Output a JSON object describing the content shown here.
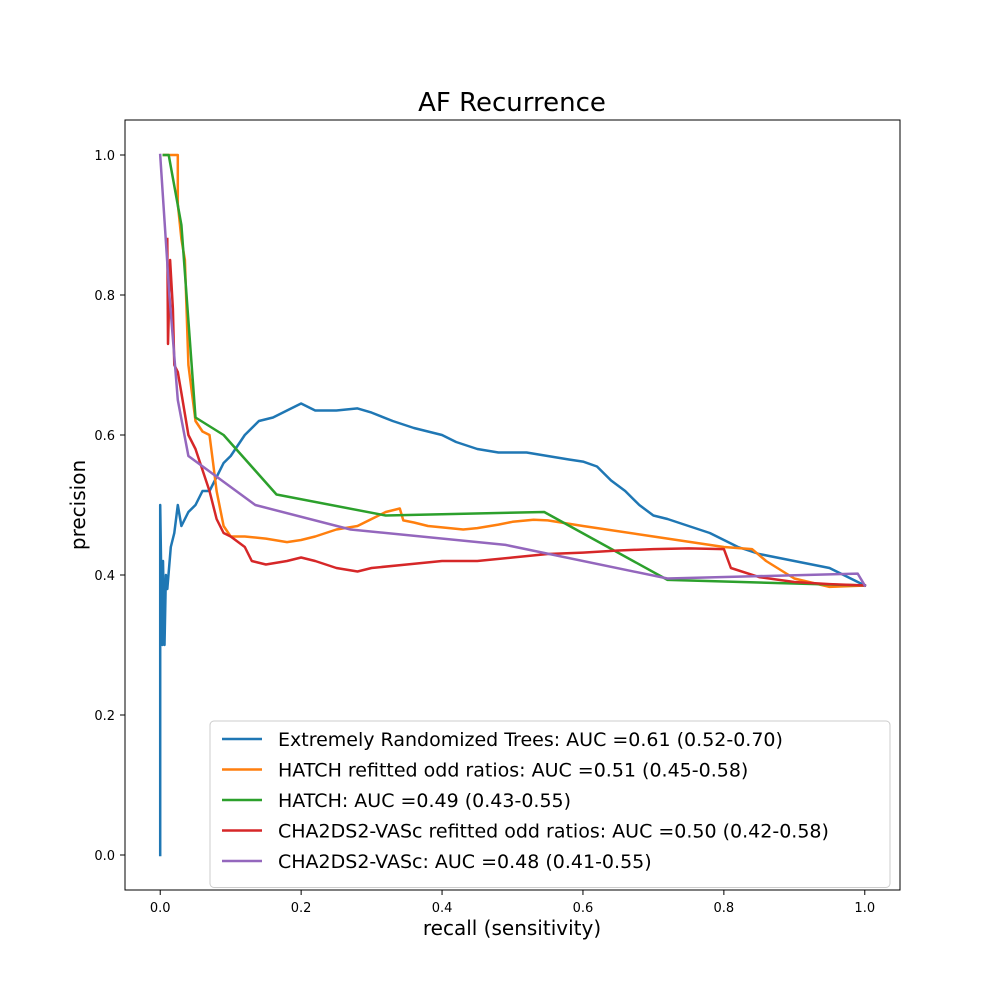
{
  "chart_data": {
    "type": "line",
    "title": "AF Recurrence",
    "xlabel": "recall (sensitivity)",
    "ylabel": "precision",
    "xlim": [
      -0.05,
      1.05
    ],
    "ylim": [
      -0.05,
      1.05
    ],
    "xticks": [
      0.0,
      0.2,
      0.4,
      0.6,
      0.8,
      1.0
    ],
    "xtick_labels": [
      "0.0",
      "0.2",
      "0.4",
      "0.6",
      "0.8",
      "1.0"
    ],
    "yticks": [
      0.0,
      0.2,
      0.4,
      0.6,
      0.8,
      1.0
    ],
    "ytick_labels": [
      "0.0",
      "0.2",
      "0.4",
      "0.6",
      "0.8",
      "1.0"
    ],
    "grid": false,
    "legend_position": "lower-right",
    "series": [
      {
        "name": "Extremely Randomized Trees: AUC =0.61 (0.52-0.70)",
        "color": "#1f77b4",
        "points": [
          [
            0.0,
            0.0
          ],
          [
            0.0,
            0.5
          ],
          [
            0.003,
            0.3
          ],
          [
            0.004,
            0.42
          ],
          [
            0.006,
            0.3
          ],
          [
            0.008,
            0.4
          ],
          [
            0.01,
            0.38
          ],
          [
            0.015,
            0.44
          ],
          [
            0.02,
            0.46
          ],
          [
            0.025,
            0.5
          ],
          [
            0.03,
            0.47
          ],
          [
            0.04,
            0.49
          ],
          [
            0.05,
            0.5
          ],
          [
            0.06,
            0.52
          ],
          [
            0.07,
            0.52
          ],
          [
            0.08,
            0.54
          ],
          [
            0.09,
            0.56
          ],
          [
            0.1,
            0.57
          ],
          [
            0.12,
            0.6
          ],
          [
            0.14,
            0.62
          ],
          [
            0.16,
            0.625
          ],
          [
            0.18,
            0.635
          ],
          [
            0.2,
            0.645
          ],
          [
            0.22,
            0.635
          ],
          [
            0.25,
            0.635
          ],
          [
            0.28,
            0.638
          ],
          [
            0.3,
            0.632
          ],
          [
            0.33,
            0.62
          ],
          [
            0.36,
            0.61
          ],
          [
            0.4,
            0.6
          ],
          [
            0.42,
            0.59
          ],
          [
            0.45,
            0.58
          ],
          [
            0.48,
            0.575
          ],
          [
            0.5,
            0.575
          ],
          [
            0.52,
            0.575
          ],
          [
            0.55,
            0.57
          ],
          [
            0.58,
            0.565
          ],
          [
            0.6,
            0.562
          ],
          [
            0.62,
            0.555
          ],
          [
            0.64,
            0.535
          ],
          [
            0.66,
            0.52
          ],
          [
            0.68,
            0.5
          ],
          [
            0.7,
            0.485
          ],
          [
            0.72,
            0.48
          ],
          [
            0.75,
            0.47
          ],
          [
            0.78,
            0.46
          ],
          [
            0.8,
            0.45
          ],
          [
            0.82,
            0.44
          ],
          [
            0.85,
            0.43
          ],
          [
            0.9,
            0.42
          ],
          [
            0.95,
            0.41
          ],
          [
            0.98,
            0.395
          ],
          [
            1.0,
            0.385
          ]
        ]
      },
      {
        "name": "HATCH refitted odd ratios: AUC =0.51 (0.45-0.58)",
        "color": "#ff7f0e",
        "points": [
          [
            0.005,
            1.0
          ],
          [
            0.025,
            1.0
          ],
          [
            0.025,
            0.93
          ],
          [
            0.03,
            0.88
          ],
          [
            0.035,
            0.85
          ],
          [
            0.04,
            0.7
          ],
          [
            0.05,
            0.62
          ],
          [
            0.06,
            0.605
          ],
          [
            0.07,
            0.6
          ],
          [
            0.075,
            0.56
          ],
          [
            0.08,
            0.52
          ],
          [
            0.09,
            0.47
          ],
          [
            0.1,
            0.455
          ],
          [
            0.12,
            0.455
          ],
          [
            0.15,
            0.452
          ],
          [
            0.18,
            0.447
          ],
          [
            0.2,
            0.45
          ],
          [
            0.22,
            0.455
          ],
          [
            0.25,
            0.465
          ],
          [
            0.28,
            0.47
          ],
          [
            0.3,
            0.48
          ],
          [
            0.32,
            0.49
          ],
          [
            0.34,
            0.495
          ],
          [
            0.345,
            0.478
          ],
          [
            0.36,
            0.475
          ],
          [
            0.38,
            0.47
          ],
          [
            0.4,
            0.468
          ],
          [
            0.43,
            0.465
          ],
          [
            0.45,
            0.467
          ],
          [
            0.48,
            0.472
          ],
          [
            0.5,
            0.476
          ],
          [
            0.53,
            0.479
          ],
          [
            0.55,
            0.478
          ],
          [
            0.6,
            0.47
          ],
          [
            0.7,
            0.455
          ],
          [
            0.8,
            0.44
          ],
          [
            0.84,
            0.437
          ],
          [
            0.86,
            0.42
          ],
          [
            0.9,
            0.395
          ],
          [
            0.95,
            0.383
          ],
          [
            1.0,
            0.385
          ]
        ]
      },
      {
        "name": "HATCH: AUC =0.49 (0.43-0.55)",
        "color": "#2ca02c",
        "points": [
          [
            0.005,
            1.0
          ],
          [
            0.012,
            1.0
          ],
          [
            0.03,
            0.9
          ],
          [
            0.05,
            0.625
          ],
          [
            0.09,
            0.6
          ],
          [
            0.165,
            0.515
          ],
          [
            0.32,
            0.485
          ],
          [
            0.545,
            0.49
          ],
          [
            0.72,
            0.393
          ],
          [
            1.0,
            0.385
          ]
        ]
      },
      {
        "name": "CHA2DS2-VASc refitted odd ratios: AUC =0.50 (0.42-0.58)",
        "color": "#d62728",
        "points": [
          [
            0.01,
            0.88
          ],
          [
            0.011,
            0.73
          ],
          [
            0.014,
            0.85
          ],
          [
            0.018,
            0.78
          ],
          [
            0.02,
            0.7
          ],
          [
            0.025,
            0.69
          ],
          [
            0.03,
            0.66
          ],
          [
            0.035,
            0.63
          ],
          [
            0.04,
            0.6
          ],
          [
            0.05,
            0.58
          ],
          [
            0.06,
            0.55
          ],
          [
            0.07,
            0.52
          ],
          [
            0.08,
            0.48
          ],
          [
            0.09,
            0.46
          ],
          [
            0.1,
            0.455
          ],
          [
            0.12,
            0.44
          ],
          [
            0.13,
            0.42
          ],
          [
            0.15,
            0.415
          ],
          [
            0.18,
            0.42
          ],
          [
            0.2,
            0.425
          ],
          [
            0.22,
            0.42
          ],
          [
            0.25,
            0.41
          ],
          [
            0.28,
            0.405
          ],
          [
            0.3,
            0.41
          ],
          [
            0.35,
            0.415
          ],
          [
            0.4,
            0.42
          ],
          [
            0.45,
            0.42
          ],
          [
            0.5,
            0.425
          ],
          [
            0.55,
            0.43
          ],
          [
            0.6,
            0.432
          ],
          [
            0.65,
            0.435
          ],
          [
            0.7,
            0.437
          ],
          [
            0.75,
            0.438
          ],
          [
            0.8,
            0.437
          ],
          [
            0.81,
            0.41
          ],
          [
            0.85,
            0.397
          ],
          [
            0.9,
            0.39
          ],
          [
            0.95,
            0.387
          ],
          [
            1.0,
            0.385
          ]
        ]
      },
      {
        "name": "CHA2DS2-VASc: AUC =0.48 (0.41-0.55)",
        "color": "#9467bd",
        "points": [
          [
            0.0,
            1.0
          ],
          [
            0.013,
            0.8
          ],
          [
            0.025,
            0.65
          ],
          [
            0.04,
            0.57
          ],
          [
            0.135,
            0.5
          ],
          [
            0.27,
            0.465
          ],
          [
            0.49,
            0.443
          ],
          [
            0.72,
            0.395
          ],
          [
            0.99,
            0.402
          ],
          [
            1.0,
            0.385
          ]
        ]
      }
    ]
  }
}
